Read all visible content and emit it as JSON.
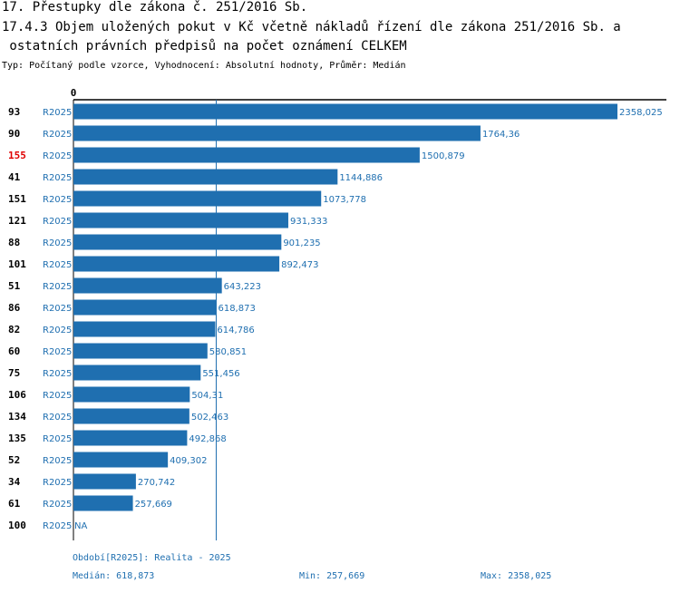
{
  "header": {
    "line1": "17. Přestupky dle zákona č. 251/2016 Sb.",
    "line2": "17.4.3 Objem uložených pokut v Kč včetně nákladů řízení dle zákona 251/2016 Sb. a",
    "line3": " ostatních právních předpisů na počet oznámení CELKEM",
    "subtitle": "Typ: Počítaný podle vzorce, Vyhodnocení: Absolutní hodnoty, Průměr: Medián"
  },
  "colors": {
    "bar": "#1f6fb0",
    "highlight_id": "#e00000",
    "median_line": "#1f6fb0"
  },
  "chart_data": {
    "type": "bar",
    "orientation": "horizontal",
    "x_axis_zero_label": "0",
    "xlim": [
      0,
      2358.025
    ],
    "median_value": 618.873,
    "highlighted_id": "155",
    "rows": [
      {
        "id": "93",
        "period": "R2025",
        "value": 2358.025,
        "label": "2358,025"
      },
      {
        "id": "90",
        "period": "R2025",
        "value": 1764.36,
        "label": "1764,36"
      },
      {
        "id": "155",
        "period": "R2025",
        "value": 1500.879,
        "label": "1500,879"
      },
      {
        "id": "41",
        "period": "R2025",
        "value": 1144.886,
        "label": "1144,886"
      },
      {
        "id": "151",
        "period": "R2025",
        "value": 1073.778,
        "label": "1073,778"
      },
      {
        "id": "121",
        "period": "R2025",
        "value": 931.333,
        "label": "931,333"
      },
      {
        "id": "88",
        "period": "R2025",
        "value": 901.235,
        "label": "901,235"
      },
      {
        "id": "101",
        "period": "R2025",
        "value": 892.473,
        "label": "892,473"
      },
      {
        "id": "51",
        "period": "R2025",
        "value": 643.223,
        "label": "643,223"
      },
      {
        "id": "86",
        "period": "R2025",
        "value": 618.873,
        "label": "618,873"
      },
      {
        "id": "82",
        "period": "R2025",
        "value": 614.786,
        "label": "614,786"
      },
      {
        "id": "60",
        "period": "R2025",
        "value": 580.851,
        "label": "580,851"
      },
      {
        "id": "75",
        "period": "R2025",
        "value": 551.456,
        "label": "551,456"
      },
      {
        "id": "106",
        "period": "R2025",
        "value": 504.31,
        "label": "504,31"
      },
      {
        "id": "134",
        "period": "R2025",
        "value": 502.463,
        "label": "502,463"
      },
      {
        "id": "135",
        "period": "R2025",
        "value": 492.868,
        "label": "492,868"
      },
      {
        "id": "52",
        "period": "R2025",
        "value": 409.302,
        "label": "409,302"
      },
      {
        "id": "34",
        "period": "R2025",
        "value": 270.742,
        "label": "270,742"
      },
      {
        "id": "61",
        "period": "R2025",
        "value": 257.669,
        "label": "257,669"
      },
      {
        "id": "100",
        "period": "R2025",
        "value": null,
        "label": "NA"
      }
    ]
  },
  "footer": {
    "period_info": "Období[R2025]: Realita - 2025",
    "median": "Medián: 618,873",
    "min": "Min: 257,669",
    "max": "Max: 2358,025"
  }
}
